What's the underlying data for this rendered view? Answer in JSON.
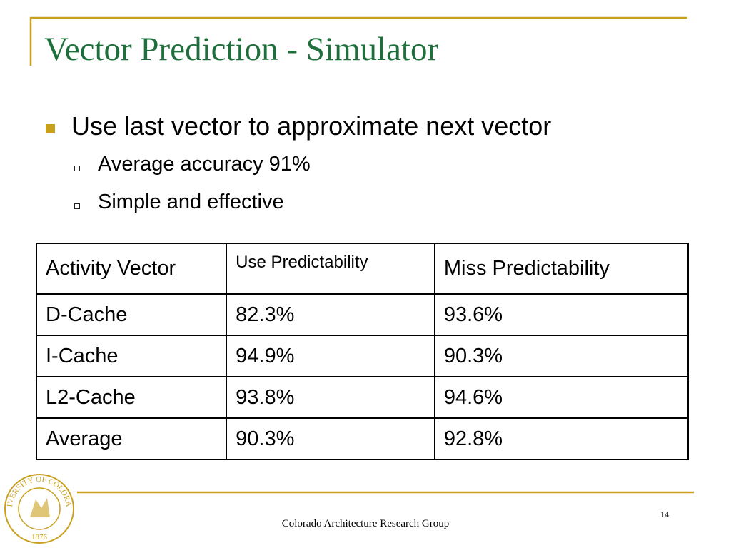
{
  "header": {
    "title": "Vector Prediction - Simulator"
  },
  "bullets": [
    {
      "text": "Use last vector to approximate next vector",
      "sub": [
        "Average accuracy 91%",
        "Simple and effective"
      ]
    }
  ],
  "table": {
    "header": [
      "Activity Vector",
      "Use Predictability",
      "Miss Predictability"
    ],
    "rows": [
      [
        "D-Cache",
        "82.3%",
        "93.6%"
      ],
      [
        "I-Cache",
        "94.9%",
        "90.3%"
      ],
      [
        "L2-Cache",
        "93.8%",
        "94.6%"
      ],
      [
        "Average",
        "90.3%",
        "92.8%"
      ]
    ]
  },
  "seal": {
    "ring": "UNIVERSITY OF COLORADO",
    "year": "1876"
  },
  "footer": {
    "text": "Colorado Architecture Research Group",
    "page": "14"
  }
}
